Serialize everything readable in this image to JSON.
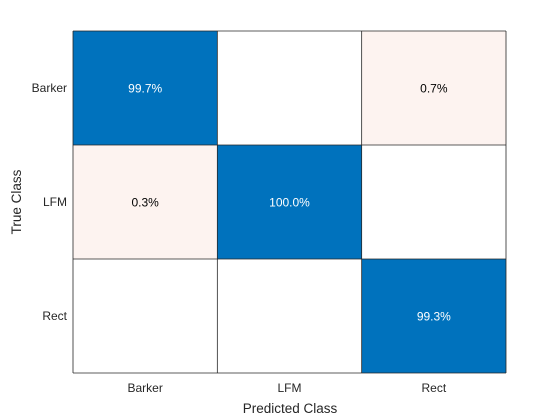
{
  "chart_data": {
    "type": "heatmap",
    "xlabel": "Predicted Class",
    "ylabel": "True Class",
    "classes": [
      "Barker",
      "LFM",
      "Rect"
    ],
    "cells": [
      [
        "99.7%",
        "",
        "0.7%"
      ],
      [
        "0.3%",
        "100.0%",
        ""
      ],
      [
        "",
        "",
        "99.3%"
      ]
    ],
    "values": [
      [
        99.7,
        0,
        0.7
      ],
      [
        0.3,
        100.0,
        0
      ],
      [
        0,
        0,
        99.3
      ]
    ],
    "colors": {
      "diagonal": "#0072BD",
      "off_diagonal": "#FDF3F0",
      "empty": "#FFFFFF",
      "diagonal_text": "#FFFFFF",
      "off_diagonal_text": "#000000"
    },
    "grid": true
  }
}
